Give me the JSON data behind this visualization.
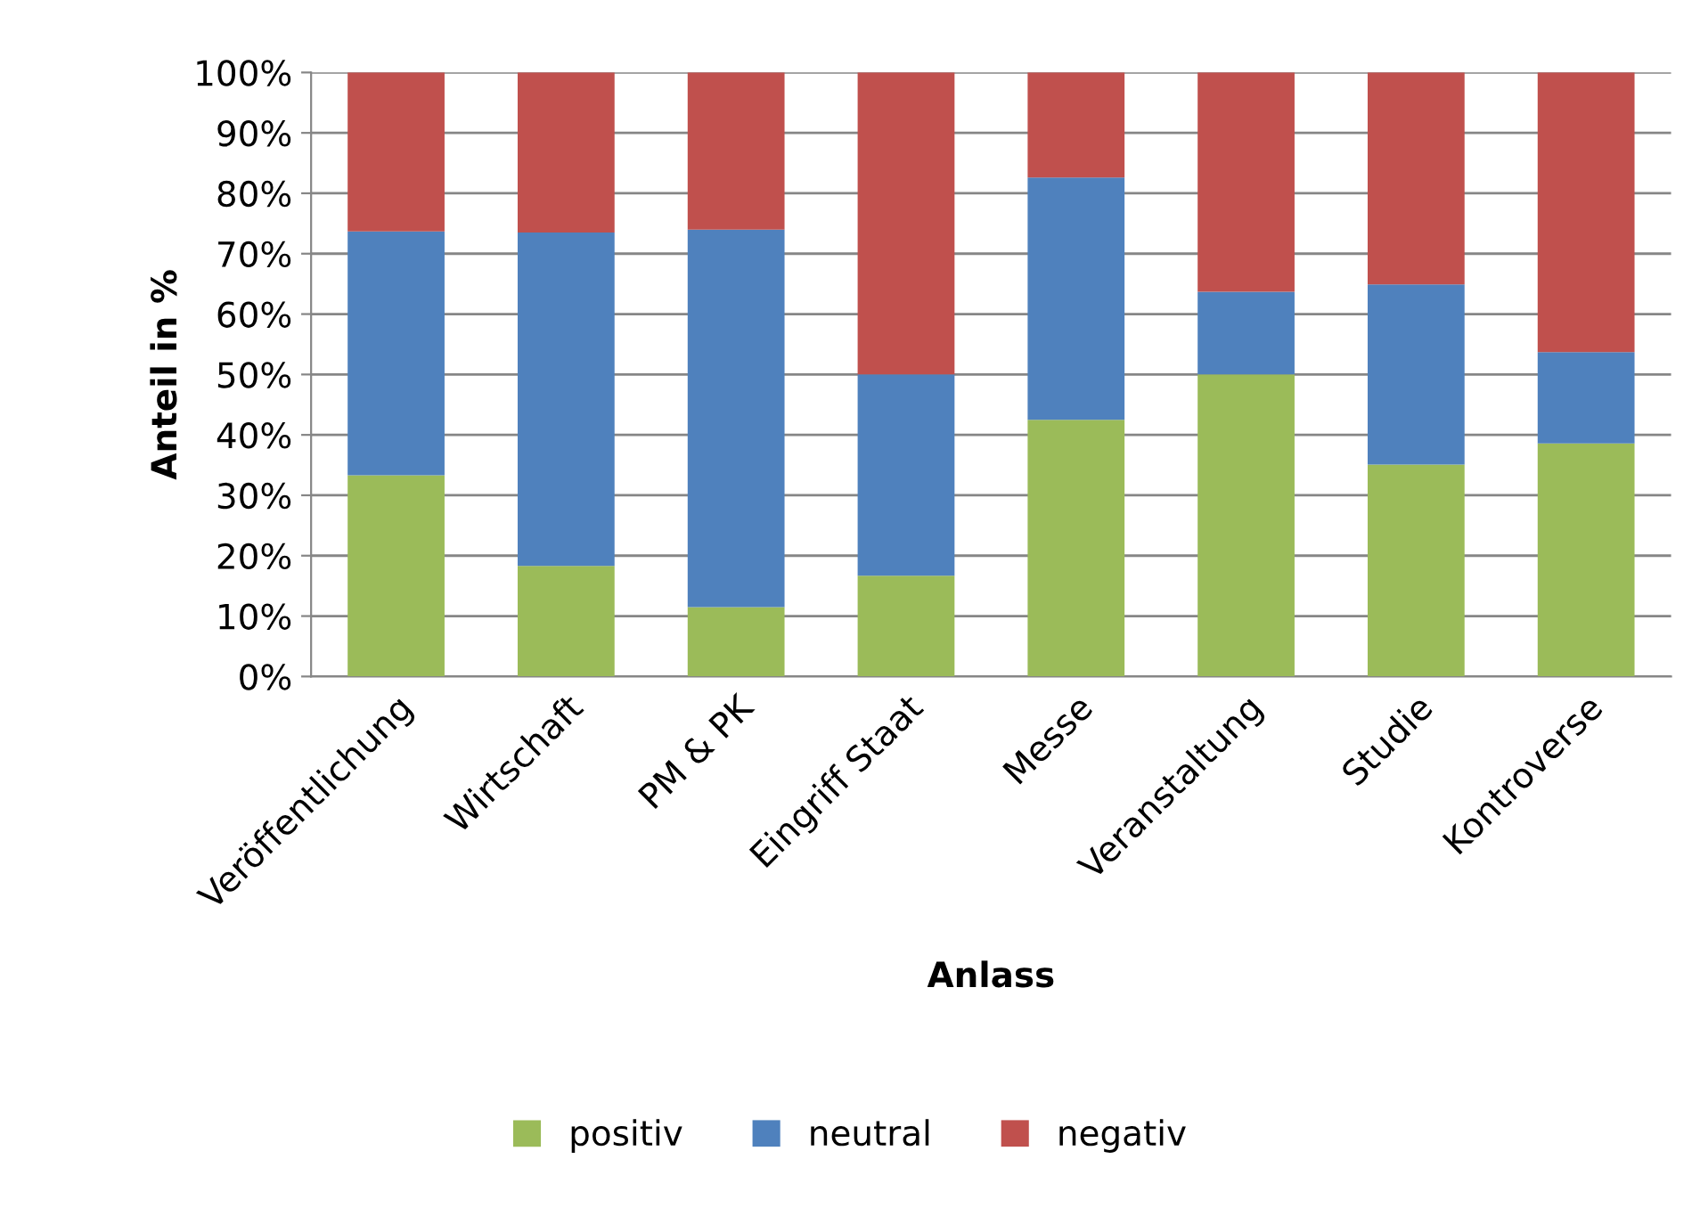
{
  "chart_data": {
    "type": "bar",
    "stacked": true,
    "xlabel": "Anlass",
    "ylabel": "Anteil in %",
    "categories": [
      "Veröffentlichung",
      "Wirtschaft",
      "PM & PK",
      "Eingriff Staat",
      "Messe",
      "Veranstaltung",
      "Studie",
      "Kontroverse"
    ],
    "series": [
      {
        "name": "positiv",
        "color": "#9bbb59",
        "values": [
          33.3,
          18.3,
          11.5,
          16.7,
          42.5,
          50,
          35.1,
          38.6
        ]
      },
      {
        "name": "neutral",
        "color": "#4f81bd",
        "values": [
          40.4,
          55.2,
          62.5,
          33.3,
          40.1,
          13.7,
          29.8,
          15.1
        ]
      },
      {
        "name": "negativ",
        "color": "#c0504d",
        "values": [
          26.3,
          26.5,
          26,
          50,
          17.4,
          36.3,
          35.1,
          46.3
        ]
      }
    ],
    "ylim": [
      0,
      100
    ],
    "yticks": [
      {
        "value": 0,
        "label": "0%"
      },
      {
        "value": 10,
        "label": "10%"
      },
      {
        "value": 20,
        "label": "20%"
      },
      {
        "value": 30,
        "label": "30%"
      },
      {
        "value": 40,
        "label": "40%"
      },
      {
        "value": 50,
        "label": "50%"
      },
      {
        "value": 60,
        "label": "60%"
      },
      {
        "value": 70,
        "label": "70%"
      },
      {
        "value": 80,
        "label": "80%"
      },
      {
        "value": 90,
        "label": "90%"
      },
      {
        "value": 100,
        "label": "100%"
      }
    ],
    "grid": "y",
    "legend": "bottom"
  }
}
